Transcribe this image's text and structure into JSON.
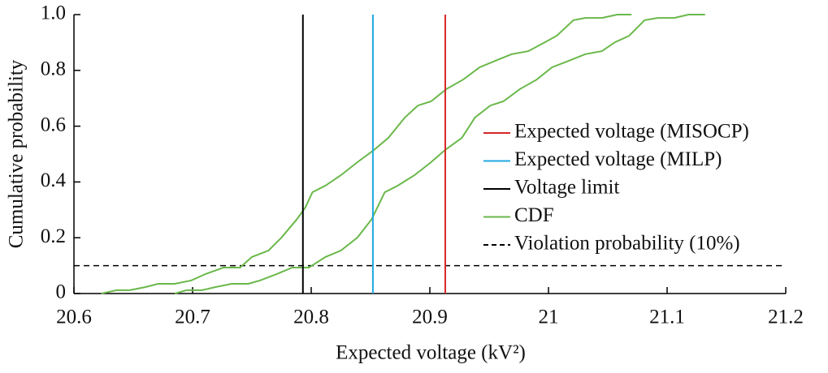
{
  "chart_data": {
    "type": "line",
    "xlabel": "Expected voltage (kV²)",
    "ylabel": "Cumulative probability",
    "xlim": [
      20.6,
      21.2
    ],
    "xticks": [
      20.6,
      20.7,
      20.8,
      20.9,
      21.0,
      21.1,
      21.2
    ],
    "ylim": [
      0,
      1
    ],
    "yticks": [
      0,
      0.2,
      0.4,
      0.6,
      0.8,
      {
        "value": 1,
        "label": "1.0"
      }
    ],
    "legend": "right",
    "vlines": [
      {
        "name": "Expected voltage (MISOCP)",
        "color": "#d62728",
        "x": 20.913
      },
      {
        "name": "Expected voltage (MILP)",
        "color": "#1fa9e1",
        "x": 20.852
      },
      {
        "name": "Voltage limit",
        "color": "#000000",
        "x": 20.793
      }
    ],
    "cdf": {
      "name": "CDF",
      "color": "#6ab84a",
      "curves": [
        {
          "x": [
            20.623,
            20.636,
            20.647,
            20.66,
            20.671,
            20.685,
            20.699,
            20.711,
            20.726,
            20.74,
            20.75,
            20.764,
            20.775,
            20.788,
            20.795,
            20.801,
            20.812,
            20.825,
            20.839,
            20.853,
            20.865,
            20.879,
            20.89,
            20.901,
            20.914,
            20.928,
            20.942,
            20.955,
            20.969,
            20.983,
            20.997,
            21.007,
            21.021,
            21.031,
            21.045,
            21.058,
            21.07
          ],
          "y": [
            0,
            0.012,
            0.012,
            0.023,
            0.035,
            0.035,
            0.047,
            0.07,
            0.093,
            0.093,
            0.131,
            0.154,
            0.201,
            0.267,
            0.308,
            0.363,
            0.387,
            0.424,
            0.471,
            0.515,
            0.558,
            0.631,
            0.674,
            0.689,
            0.733,
            0.767,
            0.811,
            0.834,
            0.858,
            0.869,
            0.901,
            0.924,
            0.98,
            0.988,
            0.988,
            1.0,
            1.0
          ]
        },
        {
          "x": [
            20.685,
            20.695,
            20.708,
            20.719,
            20.733,
            20.747,
            20.757,
            20.771,
            20.784,
            20.798,
            20.812,
            20.825,
            20.839,
            20.851,
            20.862,
            20.873,
            20.887,
            20.901,
            20.913,
            20.927,
            20.938,
            20.951,
            20.962,
            20.976,
            20.99,
            21.003,
            21.017,
            21.031,
            21.045,
            21.056,
            21.068,
            21.081,
            21.092,
            21.106,
            21.118,
            21.132
          ],
          "y": [
            0,
            0.012,
            0.012,
            0.023,
            0.035,
            0.035,
            0.047,
            0.07,
            0.093,
            0.093,
            0.131,
            0.154,
            0.201,
            0.267,
            0.363,
            0.387,
            0.424,
            0.471,
            0.515,
            0.558,
            0.631,
            0.674,
            0.689,
            0.733,
            0.767,
            0.811,
            0.834,
            0.858,
            0.869,
            0.901,
            0.924,
            0.98,
            0.988,
            0.988,
            1.0,
            1.0
          ]
        }
      ]
    },
    "hline": {
      "name": "Violation probability (10%)",
      "color": "#000000",
      "y": 0.1,
      "dashed": true
    }
  }
}
